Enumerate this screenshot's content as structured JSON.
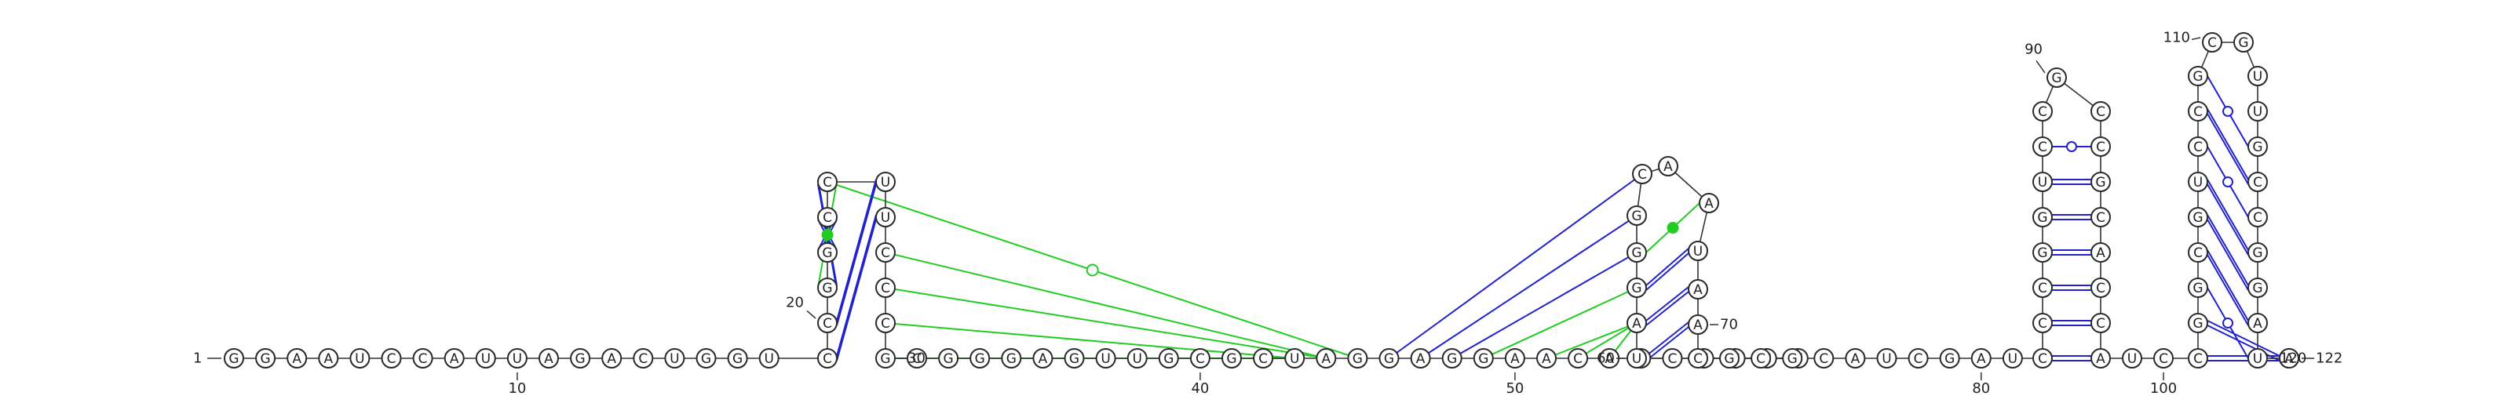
{
  "diagram": {
    "colors": {
      "canonical_pair": "#2222cc",
      "gu_pair": "#2222cc",
      "noncanonical_pair": "#22cc22",
      "backbone": "#333333",
      "text": "#222222"
    },
    "start_marker": "1",
    "end_label": "122",
    "sequence": [
      "G",
      "G",
      "A",
      "A",
      "U",
      "C",
      "C",
      "A",
      "U",
      "U",
      "A",
      "G",
      "A",
      "C",
      "U",
      "G",
      "G",
      "U",
      "C",
      "C",
      "G",
      "G",
      "C",
      "C",
      "U",
      "U",
      "C",
      "C",
      "C",
      "G",
      "C",
      "G",
      "G",
      "G",
      "A",
      "G",
      "U",
      "U",
      "G",
      "C",
      "G",
      "C",
      "U",
      "A",
      "G",
      "G",
      "A",
      "G",
      "G",
      "A",
      "A",
      "C",
      "A",
      "U",
      "C",
      "U",
      "C",
      "C",
      "U",
      "U",
      "A",
      "G",
      "G",
      "G",
      "C",
      "A",
      "A",
      "U",
      "A",
      "A",
      "C",
      "G",
      "C",
      "G",
      "C",
      "A",
      "U",
      "C",
      "G",
      "A",
      "U",
      "C",
      "C",
      "C",
      "G",
      "G",
      "U",
      "C",
      "C",
      "G",
      "C",
      "C",
      "G",
      "C",
      "A",
      "C",
      "C",
      "A",
      "U",
      "C",
      "C",
      "G",
      "G",
      "C",
      "G",
      "U",
      "C",
      "C",
      "G",
      "C",
      "G",
      "U",
      "U",
      "G",
      "C",
      "C",
      "G",
      "G",
      "A",
      "U",
      "C",
      "A"
    ],
    "tick_labels": [
      {
        "n": 10,
        "text": "10"
      },
      {
        "n": 40,
        "text": "40"
      },
      {
        "n": 50,
        "text": "50"
      },
      {
        "n": 80,
        "text": "80"
      },
      {
        "n": 100,
        "text": "100"
      }
    ],
    "pos_labels": [
      {
        "n": 20,
        "text": "20"
      },
      {
        "n": 30,
        "text": "30"
      },
      {
        "n": 60,
        "text": "60"
      },
      {
        "n": 70,
        "text": "70"
      },
      {
        "n": 90,
        "text": "90"
      },
      {
        "n": 110,
        "text": "110"
      },
      {
        "n": 120,
        "text": "120"
      }
    ],
    "pairs": [
      {
        "i": 18,
        "j": 25,
        "type": "canonical"
      },
      {
        "i": 19,
        "j": 24,
        "type": "canonical"
      },
      {
        "i": 20,
        "j": 23,
        "type": "canonical"
      },
      {
        "i": 21,
        "j": 22,
        "type": "canonical"
      },
      {
        "i": 22,
        "j": 21,
        "type": "canonical"
      },
      {
        "i": 23,
        "j": 20,
        "type": "noncanonical"
      },
      {
        "i": 59,
        "j": 69,
        "type": "canonical"
      },
      {
        "i": 60,
        "j": 68,
        "type": "canonical"
      },
      {
        "i": 61,
        "j": 67,
        "type": "canonical"
      },
      {
        "i": 62,
        "j": 66,
        "type": "noncanonical"
      },
      {
        "i": 81,
        "j": 97,
        "type": "canonical"
      },
      {
        "i": 82,
        "j": 96,
        "type": "canonical"
      },
      {
        "i": 83,
        "j": 95,
        "type": "canonical"
      },
      {
        "i": 84,
        "j": 94,
        "type": "canonical"
      },
      {
        "i": 85,
        "j": 93,
        "type": "canonical"
      },
      {
        "i": 86,
        "j": 92,
        "type": "canonical"
      },
      {
        "i": 87,
        "j": 91,
        "type": "gu"
      },
      {
        "i": 100,
        "j": 121,
        "type": "canonical"
      },
      {
        "i": 101,
        "j": 120,
        "type": "canonical"
      },
      {
        "i": 102,
        "j": 119,
        "type": "gu"
      },
      {
        "i": 103,
        "j": 118,
        "type": "canonical"
      },
      {
        "i": 104,
        "j": 117,
        "type": "canonical"
      },
      {
        "i": 105,
        "j": 116,
        "type": "canonical"
      },
      {
        "i": 106,
        "j": 115,
        "type": "gu"
      },
      {
        "i": 107,
        "j": 114,
        "type": "canonical"
      },
      {
        "i": 108,
        "j": 113,
        "type": "gu"
      }
    ],
    "long_range": [
      {
        "i": 23,
        "j": 44,
        "type": "noncanonical",
        "symbol": "open-circle"
      },
      {
        "i": 26,
        "j": 43,
        "type": "noncanonical"
      },
      {
        "i": 27,
        "j": 43,
        "type": "noncanonical"
      },
      {
        "i": 28,
        "j": 42,
        "type": "noncanonical"
      },
      {
        "i": 29,
        "j": 42,
        "type": "noncanonical"
      },
      {
        "i": 45,
        "j": 64,
        "type": "canonical"
      },
      {
        "i": 46,
        "j": 63,
        "type": "canonical"
      },
      {
        "i": 47,
        "j": 62,
        "type": "canonical"
      },
      {
        "i": 48,
        "j": 61,
        "type": "noncanonical"
      },
      {
        "i": 50,
        "j": 60,
        "type": "noncanonical"
      },
      {
        "i": 51,
        "j": 60,
        "type": "noncanonical"
      },
      {
        "i": 52,
        "j": 60,
        "type": "noncanonical"
      }
    ]
  }
}
